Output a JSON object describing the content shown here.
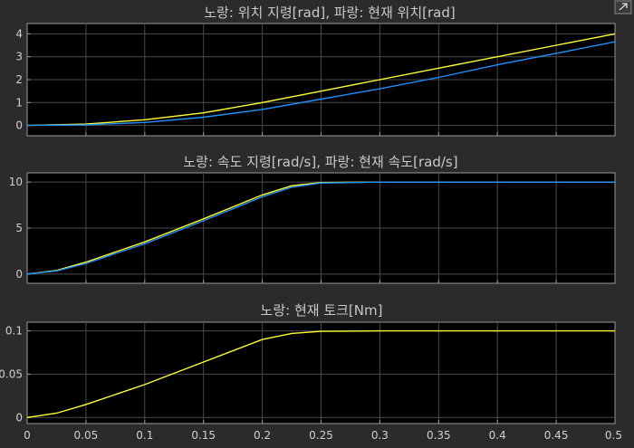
{
  "window": {
    "corner_icon": "expand-arrow-icon"
  },
  "colors": {
    "yellow": "#ffff33",
    "blue": "#1e90ff"
  },
  "chart_data": [
    {
      "type": "line",
      "title": "노랑: 위치 지령[rad], 파랑: 현재 위치[rad]",
      "xlim": [
        0,
        0.5
      ],
      "ylim": [
        -0.45,
        4.45
      ],
      "yticks": [
        0,
        1,
        2,
        3,
        4
      ],
      "ytick_labels": [
        "0",
        "1",
        "2",
        "3",
        "4"
      ],
      "xticks": [
        0,
        0.05,
        0.1,
        0.15,
        0.2,
        0.25,
        0.3,
        0.35,
        0.4,
        0.45,
        0.5
      ],
      "grid": true,
      "series": [
        {
          "color": "yellow",
          "x": [
            0,
            0.05,
            0.1,
            0.15,
            0.2,
            0.25,
            0.3,
            0.35,
            0.4,
            0.45,
            0.5
          ],
          "y": [
            0,
            0.06,
            0.25,
            0.55,
            1.0,
            1.5,
            2.0,
            2.5,
            3.0,
            3.5,
            4.0
          ]
        },
        {
          "color": "blue",
          "x": [
            0,
            0.05,
            0.1,
            0.15,
            0.2,
            0.25,
            0.3,
            0.35,
            0.4,
            0.45,
            0.5
          ],
          "y": [
            0,
            0.03,
            0.13,
            0.36,
            0.7,
            1.15,
            1.6,
            2.1,
            2.65,
            3.15,
            3.65
          ]
        }
      ]
    },
    {
      "type": "line",
      "title": "노랑: 속도 지령[rad/s], 파랑: 현재 속도[rad/s]",
      "xlim": [
        0,
        0.5
      ],
      "ylim": [
        -1,
        11
      ],
      "yticks": [
        0,
        5,
        10
      ],
      "ytick_labels": [
        "0",
        "5",
        "10"
      ],
      "xticks": [
        0,
        0.05,
        0.1,
        0.15,
        0.2,
        0.25,
        0.3,
        0.35,
        0.4,
        0.45,
        0.5
      ],
      "grid": true,
      "series": [
        {
          "color": "yellow",
          "x": [
            0,
            0.025,
            0.05,
            0.1,
            0.15,
            0.2,
            0.225,
            0.25,
            0.3,
            0.4,
            0.5
          ],
          "y": [
            0,
            0.4,
            1.3,
            3.5,
            6.0,
            8.6,
            9.6,
            9.95,
            10.0,
            10.0,
            10.0
          ]
        },
        {
          "color": "blue",
          "x": [
            0,
            0.025,
            0.05,
            0.1,
            0.15,
            0.2,
            0.225,
            0.25,
            0.3,
            0.4,
            0.5
          ],
          "y": [
            0,
            0.35,
            1.15,
            3.3,
            5.8,
            8.4,
            9.45,
            9.9,
            10.0,
            10.0,
            10.0
          ]
        }
      ]
    },
    {
      "type": "line",
      "title": "노랑: 현재 토크[Nm]",
      "xlim": [
        0,
        0.5
      ],
      "ylim": [
        -0.007,
        0.11
      ],
      "yticks": [
        0,
        0.05,
        0.1
      ],
      "ytick_labels": [
        "0",
        "0.05",
        "0.1"
      ],
      "xticks": [
        0,
        0.05,
        0.1,
        0.15,
        0.2,
        0.25,
        0.3,
        0.35,
        0.4,
        0.45,
        0.5
      ],
      "xtick_labels": [
        "0",
        "0.05",
        "0.1",
        "0.15",
        "0.2",
        "0.25",
        "0.3",
        "0.35",
        "0.4",
        "0.45",
        "0.5"
      ],
      "grid": true,
      "series": [
        {
          "color": "yellow",
          "x": [
            0,
            0.025,
            0.05,
            0.1,
            0.15,
            0.2,
            0.225,
            0.25,
            0.3,
            0.4,
            0.5
          ],
          "y": [
            0,
            0.005,
            0.015,
            0.038,
            0.064,
            0.09,
            0.097,
            0.0995,
            0.1,
            0.1,
            0.1
          ]
        }
      ]
    }
  ]
}
